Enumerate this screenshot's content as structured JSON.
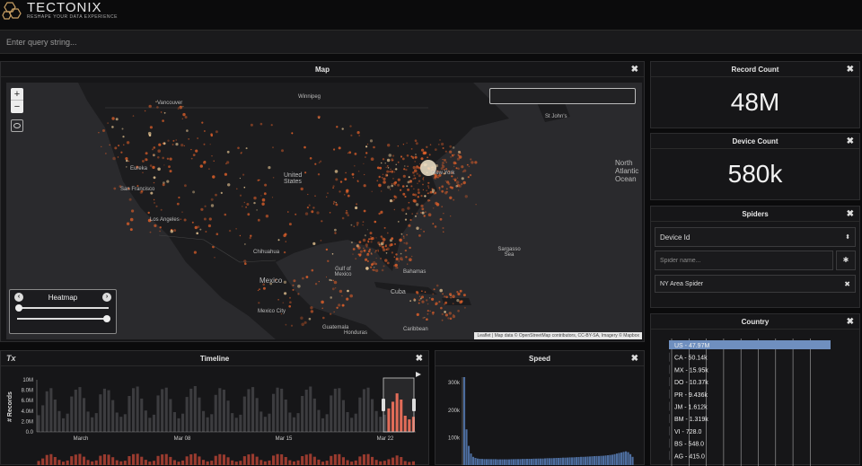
{
  "header": {
    "brand": "TECTONIX",
    "tagline": "RESHAPE YOUR DATA EXPERIENCE"
  },
  "query": {
    "placeholder": "Enter query string..."
  },
  "map_panel": {
    "title": "Map",
    "close_glyph": "✖",
    "zoom_in": "+",
    "zoom_out": "−",
    "heatmap_label": "Heatmap",
    "attribution": "Leaflet | Map data © OpenStreetMap contributors, CC-BY-SA, Imagery © Mapbox",
    "labels": {
      "winnipeg": "Winnipeg",
      "vancouver": "Vancouver",
      "eureka": "Eureka",
      "san_francisco": "San Francisco",
      "los_angeles": "Los Angeles",
      "united_states": "United States",
      "new_york": "New York",
      "st_johns": "St John's",
      "north_atlantic": "North Atlantic Ocean",
      "sargasso": "Sargasso Sea",
      "chihuahua": "Chihuahua",
      "gulf_of_mexico": "Gulf of Mexico",
      "mexico": "Mexico",
      "bahamas": "Bahamas",
      "cuba": "Cuba",
      "mexico_city": "Mexico City",
      "guatemala": "Guatemala",
      "honduras": "Honduras",
      "caribbean": "Caribbean"
    }
  },
  "record_count": {
    "title": "Record Count",
    "value": "48M"
  },
  "device_count": {
    "title": "Device Count",
    "value": "580k"
  },
  "spiders": {
    "title": "Spiders",
    "select_value": "Device Id",
    "name_placeholder": "Spider name...",
    "items": [
      "NY Area Spider"
    ]
  },
  "country": {
    "title": "Country",
    "rows": [
      {
        "label": "US - 47.97M",
        "value": 47.97
      },
      {
        "label": "CA - 50.14k",
        "value": 0.05014
      },
      {
        "label": "MX - 15.95k",
        "value": 0.01595
      },
      {
        "label": "DO - 10.37k",
        "value": 0.01037
      },
      {
        "label": "PR - 9.436k",
        "value": 0.009436
      },
      {
        "label": "JM - 1.612k",
        "value": 0.001612
      },
      {
        "label": "BM - 1.319k",
        "value": 0.001319
      },
      {
        "label": "VI - 728.0",
        "value": 0.000728
      },
      {
        "label": "BS - 548.0",
        "value": 0.000548
      },
      {
        "label": "AG - 415.0",
        "value": 0.000415
      }
    ],
    "highlight_color": "#6f8fbf"
  },
  "timeline": {
    "title": "Timeline",
    "tx_icon": "Tx",
    "ylabel": "# Records",
    "yticks": [
      "10M",
      "8.0M",
      "6.0M",
      "4.0M",
      "2.0M",
      "0.0"
    ],
    "xticks": [
      "March",
      "Mar 08",
      "Mar 15",
      "Mar 22"
    ]
  },
  "speed": {
    "title": "Speed",
    "yticks": [
      "300k",
      "200k",
      "100k"
    ]
  },
  "chart_data": [
    {
      "type": "bar",
      "title": "Timeline",
      "ylabel": "# Records",
      "ylim": [
        0,
        10000000
      ],
      "yticks": [
        "10M",
        "8.0M",
        "6.0M",
        "4.0M",
        "2.0M",
        "0.0"
      ],
      "xticks": [
        "March",
        "Mar 08",
        "Mar 15",
        "Mar 22"
      ],
      "values": [
        3.2,
        5.1,
        7.8,
        8.4,
        6.2,
        4.0,
        2.6,
        3.5,
        6.8,
        8.1,
        8.6,
        6.5,
        3.9,
        2.8,
        3.6,
        7.2,
        8.3,
        8.0,
        6.1,
        3.7,
        2.9,
        3.4,
        6.9,
        8.4,
        8.7,
        6.4,
        4.1,
        2.7,
        3.3,
        7.0,
        8.2,
        8.5,
        6.3,
        3.8,
        2.6,
        3.5,
        6.7,
        8.3,
        8.8,
        6.6,
        4.0,
        2.8,
        3.4,
        7.1,
        8.4,
        8.1,
        6.0,
        3.6,
        2.7,
        3.3,
        6.8,
        8.2,
        8.6,
        6.5,
        3.9,
        2.9,
        3.5,
        7.3,
        8.5,
        8.3,
        6.2,
        3.7,
        2.8,
        3.6,
        6.9,
        8.1,
        8.7,
        6.4,
        4.2,
        2.6,
        3.4,
        7.0,
        8.3,
        8.4,
        6.1,
        3.8,
        2.7,
        3.5,
        6.6,
        8.2,
        8.5,
        6.3,
        4.0,
        2.9,
        3.3,
        4.5,
        5.8,
        7.4,
        6.2,
        3.1,
        2.4,
        2.9
      ]
    },
    {
      "type": "bar",
      "title": "Speed",
      "yticks": [
        "300k",
        "200k",
        "100k"
      ],
      "ylim": [
        0,
        320000
      ],
      "values": [
        320000,
        130000,
        70000,
        42000,
        30000,
        26000,
        24000,
        23000,
        22500,
        22000,
        22000,
        22000,
        21500,
        21500,
        21500,
        21000,
        21000,
        21000,
        21000,
        21000,
        21000,
        21500,
        21500,
        22000,
        22000,
        22000,
        22500,
        22500,
        23000,
        23000,
        23000,
        23500,
        23500,
        24000,
        24000,
        24000,
        24500,
        25000,
        25000,
        25000,
        25500,
        26000,
        26000,
        26500,
        27000,
        27000,
        27500,
        28000,
        28000,
        28500,
        29000,
        29500,
        30000,
        30000,
        30500,
        31000,
        31500,
        32000,
        32500,
        33000,
        33000,
        33500,
        34000,
        35000,
        36000,
        37000,
        38000,
        40000,
        42000,
        44000,
        46000,
        48000,
        50000,
        47000,
        40000,
        30000
      ]
    }
  ]
}
